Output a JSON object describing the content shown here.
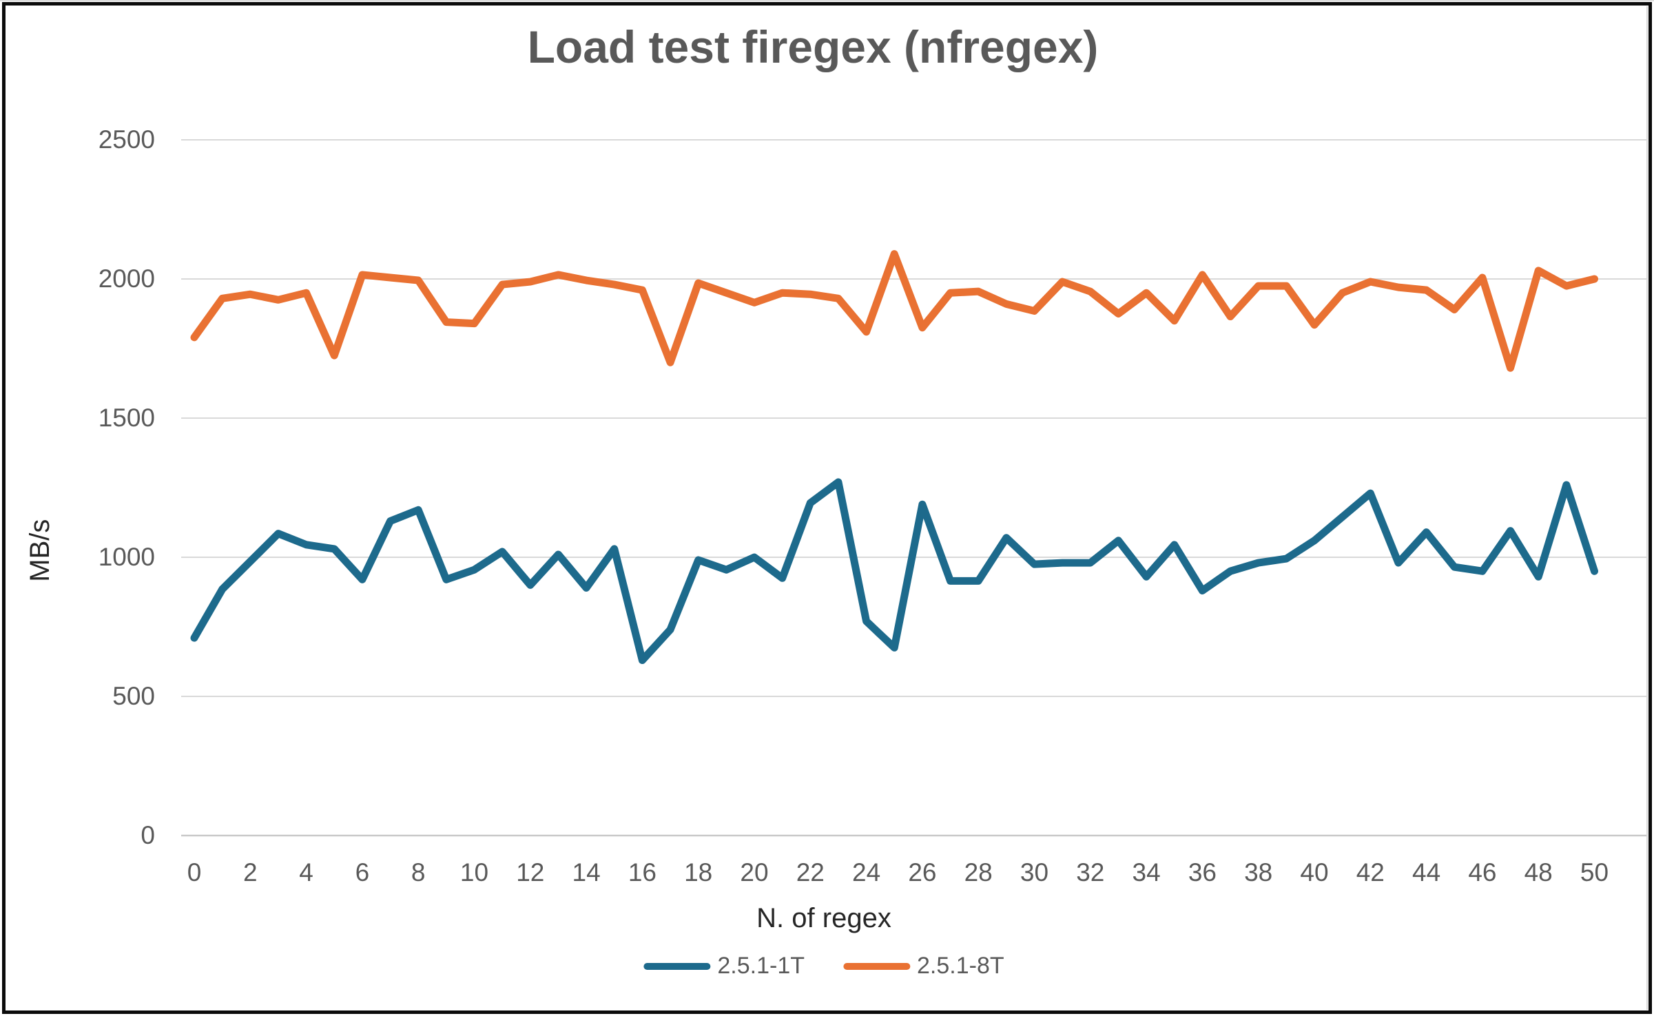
{
  "title": "Load test firegex (nfregex)",
  "colors": {
    "series_1T": "#1D6A8C",
    "series_8T": "#E97132",
    "gridline": "#D9D9D9",
    "axis_line": "#C9C9C9",
    "title_text": "#595959",
    "tick_text": "#595959",
    "axis_label_text": "#262626",
    "frame": "#0B0B0B"
  },
  "chart_data": {
    "type": "line",
    "title": "Load test firegex (nfregex)",
    "xlabel": "N. of regex",
    "ylabel": "MB/s",
    "xlim": [
      0,
      50
    ],
    "ylim": [
      0,
      2500
    ],
    "grid": "horizontal",
    "legend_position": "bottom-center",
    "yticks": [
      0,
      500,
      1000,
      1500,
      2000,
      2500
    ],
    "xticks": [
      0,
      2,
      4,
      6,
      8,
      10,
      12,
      14,
      16,
      18,
      20,
      22,
      24,
      26,
      28,
      30,
      32,
      34,
      36,
      38,
      40,
      42,
      44,
      46,
      48,
      50
    ],
    "x": [
      0,
      1,
      2,
      3,
      4,
      5,
      6,
      7,
      8,
      9,
      10,
      11,
      12,
      13,
      14,
      15,
      16,
      17,
      18,
      19,
      20,
      21,
      22,
      23,
      24,
      25,
      26,
      27,
      28,
      29,
      30,
      31,
      32,
      33,
      34,
      35,
      36,
      37,
      38,
      39,
      40,
      41,
      42,
      43,
      44,
      45,
      46,
      47,
      48,
      49,
      50
    ],
    "series": [
      {
        "name": "2.5.1-1T",
        "color": "#1D6A8C",
        "values": [
          710,
          885,
          985,
          1085,
          1045,
          1030,
          920,
          1130,
          1170,
          920,
          955,
          1020,
          900,
          1010,
          890,
          1030,
          630,
          740,
          990,
          955,
          1000,
          925,
          1195,
          1270,
          770,
          675,
          1190,
          915,
          915,
          1070,
          975,
          980,
          980,
          1060,
          930,
          1045,
          880,
          950,
          980,
          995,
          1060,
          1145,
          1230,
          980,
          1090,
          965,
          950,
          1095,
          930,
          1260,
          950
        ]
      },
      {
        "name": "2.5.1-8T",
        "color": "#E97132",
        "values": [
          1790,
          1930,
          1945,
          1925,
          1950,
          1725,
          2015,
          2005,
          1995,
          1845,
          1840,
          1980,
          1990,
          2015,
          1995,
          1980,
          1960,
          1700,
          1985,
          1950,
          1915,
          1950,
          1945,
          1930,
          1810,
          2090,
          1825,
          1950,
          1955,
          1910,
          1885,
          1990,
          1955,
          1875,
          1950,
          1850,
          2015,
          1865,
          1975,
          1975,
          1835,
          1950,
          1990,
          1970,
          1960,
          1890,
          2005,
          1680,
          2030,
          1975,
          2000
        ]
      }
    ]
  }
}
